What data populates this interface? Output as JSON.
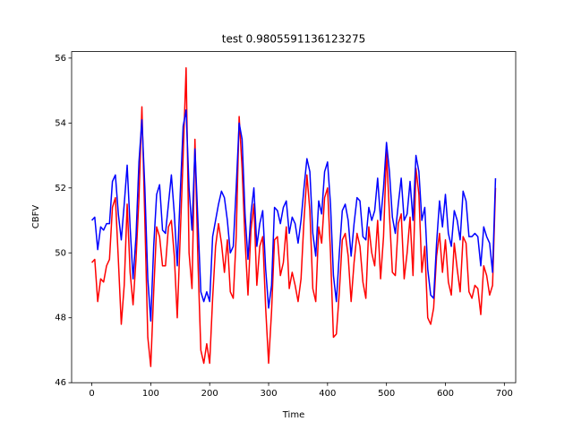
{
  "chart_data": {
    "type": "line",
    "title": "test 0.9805591136123275",
    "x_label": "Time",
    "y_label": "CBFV",
    "x": [
      0,
      5,
      10,
      15,
      20,
      25,
      30,
      35,
      40,
      45,
      50,
      55,
      60,
      65,
      70,
      75,
      80,
      85,
      90,
      95,
      100,
      105,
      110,
      115,
      120,
      125,
      130,
      135,
      140,
      145,
      150,
      155,
      160,
      165,
      170,
      175,
      180,
      185,
      190,
      195,
      200,
      205,
      210,
      215,
      220,
      225,
      230,
      235,
      240,
      245,
      250,
      255,
      260,
      265,
      270,
      275,
      280,
      285,
      290,
      295,
      300,
      305,
      310,
      315,
      320,
      325,
      330,
      335,
      340,
      345,
      350,
      355,
      360,
      365,
      370,
      375,
      380,
      385,
      390,
      395,
      400,
      405,
      410,
      415,
      420,
      425,
      430,
      435,
      440,
      445,
      450,
      455,
      460,
      465,
      470,
      475,
      480,
      485,
      490,
      495,
      500,
      505,
      510,
      515,
      520,
      525,
      530,
      535,
      540,
      545,
      550,
      555,
      560,
      565,
      570,
      575,
      580,
      585,
      590,
      595,
      600,
      605,
      610,
      615,
      620,
      625,
      630,
      635,
      640,
      645,
      650,
      655,
      660,
      665,
      670,
      675,
      680,
      685
    ],
    "series": [
      {
        "color": "#ff0000",
        "values": [
          49.7,
          49.8,
          48.5,
          49.2,
          49.1,
          49.6,
          49.8,
          51.4,
          51.7,
          49.8,
          47.8,
          49.0,
          51.5,
          49.4,
          48.4,
          49.8,
          51.7,
          54.5,
          51.0,
          47.4,
          46.5,
          48.8,
          50.8,
          50.5,
          49.6,
          49.6,
          50.8,
          51.0,
          49.9,
          48.0,
          50.5,
          53.0,
          55.7,
          50.0,
          48.9,
          53.5,
          49.8,
          47.0,
          46.6,
          47.2,
          46.6,
          48.6,
          50.2,
          50.9,
          50.3,
          49.4,
          50.4,
          48.8,
          48.6,
          50.5,
          54.2,
          52.6,
          50.4,
          48.7,
          50.7,
          51.5,
          49.0,
          50.2,
          50.5,
          48.3,
          46.6,
          48.2,
          50.4,
          50.5,
          49.3,
          49.7,
          50.8,
          48.9,
          49.4,
          49.0,
          48.5,
          49.2,
          51.0,
          52.4,
          51.3,
          48.9,
          48.5,
          50.8,
          50.3,
          51.7,
          52.0,
          50.0,
          47.4,
          47.5,
          48.8,
          50.4,
          50.6,
          49.9,
          48.5,
          49.7,
          50.6,
          50.2,
          49.1,
          48.6,
          50.8,
          50.0,
          49.6,
          51.0,
          49.2,
          50.5,
          53.1,
          51.2,
          49.4,
          49.3,
          50.9,
          51.2,
          49.2,
          50.0,
          51.1,
          49.3,
          52.6,
          51.8,
          49.4,
          50.2,
          48.0,
          47.8,
          48.3,
          49.9,
          50.6,
          49.4,
          50.4,
          49.1,
          48.7,
          50.3,
          49.5,
          48.8,
          50.5,
          50.3,
          48.8,
          48.6,
          49.0,
          48.9,
          48.1,
          49.6,
          49.3,
          48.7,
          49.0,
          52.0
        ]
      },
      {
        "color": "#0000ff",
        "values": [
          51.0,
          51.1,
          50.1,
          50.8,
          50.7,
          50.9,
          50.9,
          52.2,
          52.4,
          51.2,
          50.4,
          51.5,
          52.7,
          50.8,
          49.2,
          50.5,
          52.8,
          54.1,
          52.0,
          49.2,
          47.9,
          50.2,
          51.8,
          52.1,
          50.7,
          50.6,
          51.5,
          52.4,
          51.2,
          49.6,
          51.8,
          53.9,
          54.4,
          52.0,
          50.7,
          53.2,
          51.0,
          48.8,
          48.5,
          48.8,
          48.5,
          50.5,
          51.0,
          51.5,
          51.9,
          51.7,
          51.0,
          50.0,
          50.2,
          52.0,
          54.0,
          53.5,
          51.2,
          49.8,
          51.2,
          52.0,
          50.2,
          50.9,
          51.3,
          49.5,
          48.3,
          49.0,
          51.4,
          51.3,
          50.9,
          51.4,
          51.6,
          50.6,
          51.1,
          50.9,
          50.3,
          51.0,
          52.0,
          52.9,
          52.5,
          50.6,
          49.9,
          51.6,
          51.2,
          52.5,
          52.8,
          51.5,
          49.3,
          48.5,
          50.0,
          51.3,
          51.5,
          51.0,
          49.9,
          50.9,
          51.7,
          51.6,
          50.5,
          50.4,
          51.4,
          51.0,
          51.3,
          52.3,
          51.0,
          52.0,
          53.4,
          52.5,
          51.1,
          50.6,
          51.5,
          52.3,
          51.0,
          51.2,
          52.2,
          51.0,
          53.0,
          52.5,
          51.0,
          51.4,
          49.5,
          48.7,
          48.6,
          50.3,
          51.6,
          50.8,
          51.8,
          50.6,
          50.2,
          51.3,
          51.0,
          50.4,
          51.9,
          51.6,
          50.5,
          50.5,
          50.6,
          50.5,
          49.6,
          50.8,
          50.5,
          50.3,
          49.4,
          52.3
        ]
      }
    ],
    "xlim": [
      -34.25,
      719.25
    ],
    "ylim": [
      46.0,
      56.2
    ],
    "xticks": [
      0,
      100,
      200,
      300,
      400,
      500,
      600,
      700
    ],
    "yticks": [
      46,
      48,
      50,
      52,
      54,
      56
    ]
  }
}
